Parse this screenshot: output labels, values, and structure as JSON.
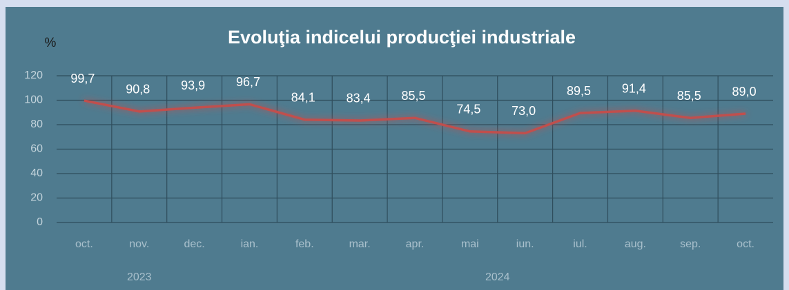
{
  "chart_data": {
    "type": "line",
    "title": "Evoluţia indicelui producţiei industriale",
    "y_label": "%",
    "categories": [
      "oct.",
      "nov.",
      "dec.",
      "ian.",
      "feb.",
      "mar.",
      "apr.",
      "mai",
      "iun.",
      "iul.",
      "aug.",
      "sep.",
      "oct."
    ],
    "values": [
      99.7,
      90.8,
      93.9,
      96.7,
      84.1,
      83.4,
      85.5,
      74.5,
      73.0,
      89.5,
      91.4,
      85.5,
      89.0
    ],
    "value_labels": [
      "99,7",
      "90,8",
      "93,9",
      "96,7",
      "84,1",
      "83,4",
      "85,5",
      "74,5",
      "73,0",
      "89,5",
      "91,4",
      "85,5",
      "89,0"
    ],
    "year_groups": [
      {
        "label": "2023",
        "from": "oct.",
        "to": "dec."
      },
      {
        "label": "2024",
        "from": "ian.",
        "to": "oct."
      }
    ],
    "color": "#c0504d",
    "ylim": [
      0,
      120
    ],
    "yticks": [
      0,
      20,
      40,
      60,
      80,
      100,
      120
    ],
    "grid": true
  }
}
